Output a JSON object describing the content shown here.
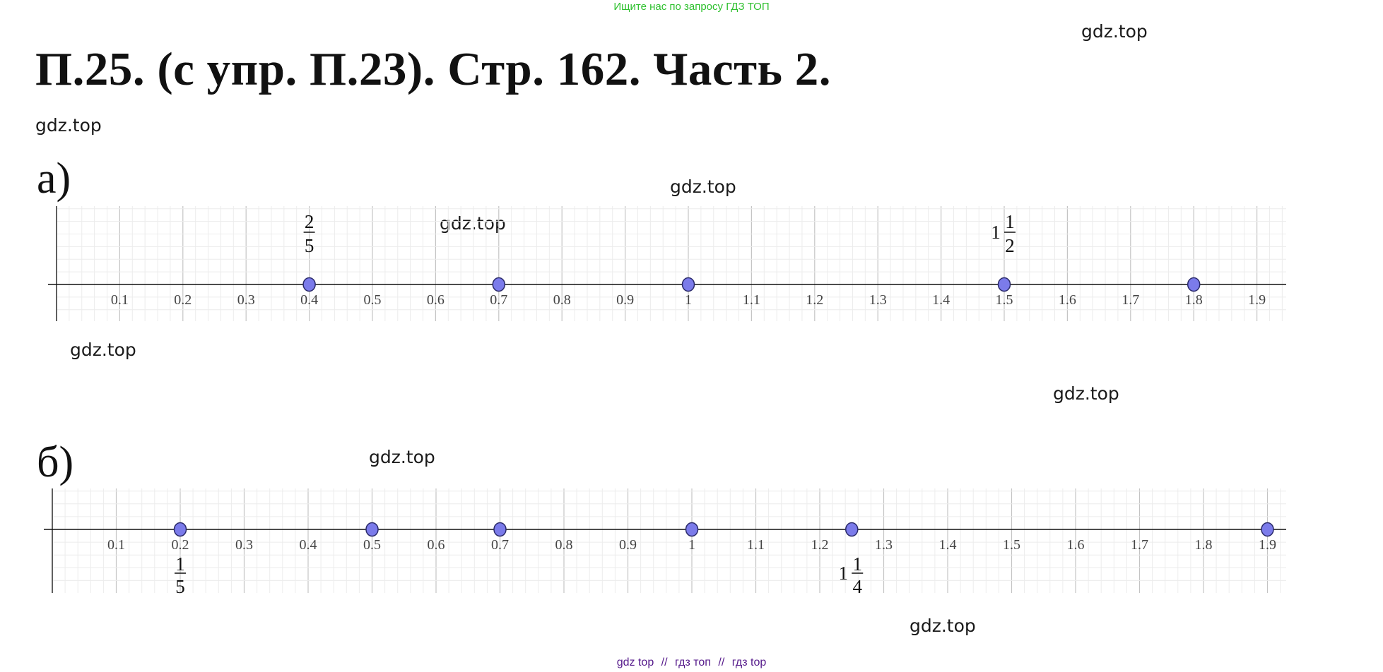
{
  "banner": "Ищите нас по запросу ГДЗ ТОП",
  "title": "П.25.  (с упр. П.23). Стр. 162. Часть 2.",
  "watermark": "gdz.top",
  "footer": {
    "items": [
      "gdz top",
      "гдз топ",
      "гдз top"
    ],
    "separator": "//"
  },
  "colors": {
    "point": "#7b7bea",
    "grid": "#cfcfcf",
    "axis": "#111111",
    "banner": "#2ec02e",
    "footer": "#551a8b"
  },
  "parts": [
    {
      "label": "а)",
      "ticks": [
        "0.1",
        "0.2",
        "0.3",
        "0.4",
        "0.5",
        "0.6",
        "0.7",
        "0.8",
        "0.9",
        "1",
        "1.1",
        "1.2",
        "1.3",
        "1.4",
        "1.5",
        "1.6",
        "1.7",
        "1.8",
        "1.9"
      ],
      "points": [
        0.4,
        0.7,
        1,
        1.5,
        1.8
      ],
      "fractions": [
        {
          "value": 0.4,
          "whole": "",
          "num": "2",
          "den": "5",
          "position": "above"
        },
        {
          "value": 1.5,
          "whole": "1",
          "num": "1",
          "den": "2",
          "position": "above"
        }
      ]
    },
    {
      "label": "б)",
      "ticks": [
        "0.1",
        "0.2",
        "0.3",
        "0.4",
        "0.5",
        "0.6",
        "0.7",
        "0.8",
        "0.9",
        "1",
        "1.1",
        "1.2",
        "1.3",
        "1.4",
        "1.5",
        "1.6",
        "1.7",
        "1.8",
        "1.9"
      ],
      "points": [
        0.2,
        0.5,
        0.7,
        1,
        1.25,
        1.9
      ],
      "fractions": [
        {
          "value": 0.2,
          "whole": "",
          "num": "1",
          "den": "5",
          "position": "below"
        },
        {
          "value": 1.25,
          "whole": "1",
          "num": "1",
          "den": "4",
          "position": "below"
        }
      ]
    }
  ]
}
